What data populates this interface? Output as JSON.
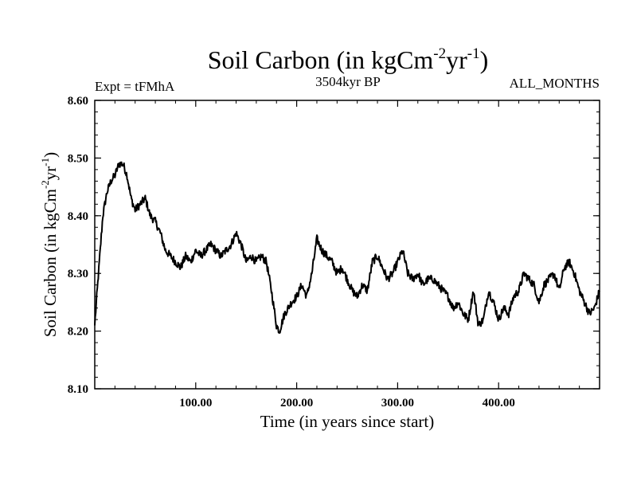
{
  "chart_data": {
    "type": "line",
    "title": "Soil Carbon (in kgCm",
    "title_sup1": "-2",
    "title_mid": "yr",
    "title_sup2": "-1",
    "title_end": ")",
    "subtitle_left": "Expt = tFMhA",
    "subtitle_center": "3504kyr BP",
    "subtitle_right": "ALL_MONTHS",
    "xlabel": "Time (in years since start)",
    "ylabel": "Soil Carbon (in kgCm",
    "ylabel_sup1": "-2",
    "ylabel_mid": "yr",
    "ylabel_sup2": "-1",
    "ylabel_end": ")",
    "xlim": [
      0,
      500
    ],
    "ylim": [
      8.1,
      8.6
    ],
    "xticks": [
      100,
      200,
      300,
      400
    ],
    "xtick_labels": [
      "100.00",
      "200.00",
      "300.00",
      "400.00"
    ],
    "yticks": [
      8.1,
      8.2,
      8.3,
      8.4,
      8.5,
      8.6
    ],
    "ytick_labels": [
      "8.10",
      "8.20",
      "8.30",
      "8.40",
      "8.50",
      "8.60"
    ],
    "series": [
      {
        "name": "Soil Carbon",
        "color": "#000000",
        "x": [
          0,
          2,
          5,
          8,
          12,
          16,
          20,
          24,
          28,
          32,
          36,
          40,
          45,
          50,
          55,
          60,
          65,
          70,
          75,
          80,
          85,
          90,
          95,
          100,
          105,
          110,
          115,
          120,
          125,
          130,
          135,
          140,
          145,
          150,
          155,
          160,
          165,
          170,
          175,
          180,
          183,
          188,
          195,
          200,
          205,
          210,
          215,
          220,
          225,
          230,
          235,
          240,
          245,
          250,
          255,
          260,
          265,
          270,
          275,
          280,
          285,
          290,
          295,
          300,
          305,
          310,
          315,
          320,
          325,
          330,
          335,
          340,
          345,
          350,
          355,
          360,
          365,
          370,
          375,
          380,
          385,
          390,
          395,
          400,
          405,
          410,
          415,
          420,
          425,
          430,
          435,
          440,
          445,
          450,
          455,
          460,
          465,
          470,
          475,
          480,
          485,
          490,
          495,
          500
        ],
        "values": [
          8.21,
          8.26,
          8.33,
          8.4,
          8.44,
          8.46,
          8.47,
          8.49,
          8.49,
          8.47,
          8.43,
          8.41,
          8.42,
          8.43,
          8.4,
          8.39,
          8.37,
          8.34,
          8.33,
          8.32,
          8.31,
          8.33,
          8.32,
          8.34,
          8.33,
          8.34,
          8.35,
          8.34,
          8.33,
          8.34,
          8.35,
          8.37,
          8.35,
          8.32,
          8.33,
          8.32,
          8.33,
          8.32,
          8.27,
          8.21,
          8.2,
          8.23,
          8.25,
          8.26,
          8.28,
          8.26,
          8.3,
          8.36,
          8.34,
          8.33,
          8.32,
          8.3,
          8.31,
          8.29,
          8.27,
          8.26,
          8.28,
          8.27,
          8.32,
          8.33,
          8.31,
          8.29,
          8.3,
          8.32,
          8.34,
          8.3,
          8.29,
          8.3,
          8.28,
          8.29,
          8.29,
          8.28,
          8.27,
          8.26,
          8.24,
          8.25,
          8.23,
          8.22,
          8.27,
          8.21,
          8.22,
          8.27,
          8.25,
          8.22,
          8.24,
          8.23,
          8.26,
          8.27,
          8.3,
          8.29,
          8.28,
          8.25,
          8.28,
          8.29,
          8.3,
          8.27,
          8.31,
          8.32,
          8.3,
          8.27,
          8.25,
          8.23,
          8.24,
          8.27
        ]
      }
    ]
  }
}
